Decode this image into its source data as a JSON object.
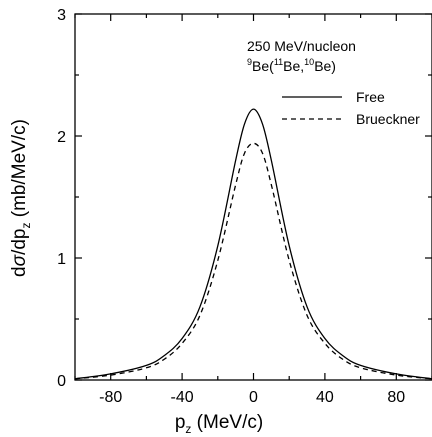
{
  "chart_data": {
    "type": "line",
    "xlim": [
      -100,
      100
    ],
    "ylim": [
      0,
      3
    ],
    "xticks": [
      -80,
      -40,
      0,
      40,
      80
    ],
    "yticks": [
      0,
      1,
      2,
      3
    ],
    "xlabel": {
      "main": "p",
      "sub": "z",
      "unit": "(MeV/c)"
    },
    "ylabel": {
      "prefix": "d",
      "sigma": "σ",
      "mid": "/dp",
      "sub": "z",
      "unit": "(mb/MeV/c)"
    },
    "annotation": {
      "line1": "250 MeV/nucleon",
      "line2": {
        "sup1": "9",
        "a": "Be(",
        "sup2": "11",
        "b": "Be,",
        "sup3": "10",
        "c": "Be)"
      }
    },
    "legend_position": "top-right",
    "series": [
      {
        "name": "Free",
        "style": "solid",
        "x": [
          -100,
          -80,
          -60,
          -50,
          -40,
          -30,
          -20,
          -10,
          -5,
          0,
          5,
          10,
          20,
          30,
          40,
          50,
          60,
          80,
          100
        ],
        "y": [
          0.01,
          0.05,
          0.12,
          0.2,
          0.34,
          0.6,
          1.1,
          1.8,
          2.1,
          2.22,
          2.1,
          1.8,
          1.1,
          0.6,
          0.34,
          0.2,
          0.12,
          0.05,
          0.01
        ]
      },
      {
        "name": "Brueckner",
        "style": "dashed",
        "x": [
          -100,
          -80,
          -60,
          -50,
          -40,
          -30,
          -20,
          -10,
          -5,
          0,
          5,
          10,
          20,
          30,
          40,
          50,
          60,
          80,
          100
        ],
        "y": [
          0.01,
          0.04,
          0.1,
          0.17,
          0.3,
          0.53,
          0.98,
          1.6,
          1.86,
          1.94,
          1.86,
          1.6,
          0.98,
          0.53,
          0.3,
          0.17,
          0.1,
          0.04,
          0.01
        ]
      }
    ]
  }
}
